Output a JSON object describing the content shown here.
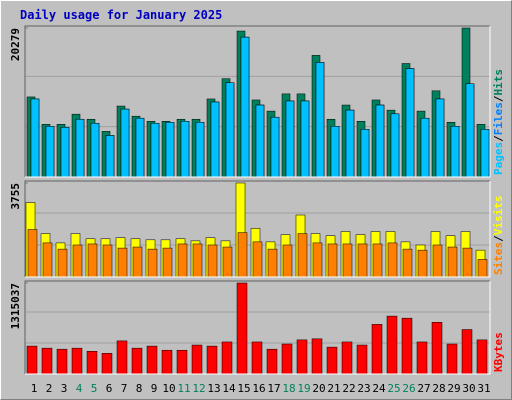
{
  "chart_data": [
    {
      "type": "bar",
      "title": "Daily usage for January 2025",
      "ylim": [
        0,
        20279
      ],
      "yticks": [
        20279
      ],
      "legend_separator": "/",
      "series": [
        {
          "name": "Hits",
          "color": "#00805c",
          "values": [
            10898,
            7173,
            7173,
            8553,
            7863,
            6208,
            9657,
            8277,
            7587,
            7587,
            7863,
            7863,
            10622,
            13381,
            19865,
            10484,
            8967,
            11312,
            11312,
            16554,
            7863,
            9794,
            7587,
            10484,
            9100,
            15450,
            8967,
            11726,
            7449,
            20279,
            7173
          ]
        },
        {
          "name": "Files",
          "color": "#0080ff",
          "values": [
            10622,
            6898,
            6760,
            7863,
            7311,
            5656,
            9243,
            8001,
            7311,
            7449,
            7587,
            7449,
            10208,
            12829,
            19037,
            9794,
            8139,
            10346,
            10346,
            15588,
            6898,
            9105,
            6484,
            9794,
            8600,
            14761,
            8001,
            10622,
            6898,
            12691,
            6484
          ]
        },
        {
          "name": "Pages",
          "color": "#00c0ff",
          "values": [
            10622,
            6898,
            6760,
            7863,
            7311,
            5656,
            9243,
            8001,
            7311,
            7449,
            7587,
            7449,
            10208,
            12829,
            19037,
            9794,
            8139,
            10346,
            10346,
            15588,
            6898,
            9105,
            6484,
            9794,
            8600,
            14761,
            8001,
            10622,
            6898,
            12691,
            6484
          ]
        }
      ]
    },
    {
      "type": "bar",
      "ylim": [
        0,
        3755
      ],
      "yticks": [
        3755
      ],
      "legend_separator": "/",
      "series": [
        {
          "name": "Visits",
          "color": "#ffff00",
          "values": [
            2971,
            1733,
            1362,
            1733,
            1527,
            1527,
            1568,
            1527,
            1485,
            1485,
            1527,
            1444,
            1568,
            1444,
            3755,
            1939,
            1403,
            1692,
            2476,
            1733,
            1650,
            1815,
            1692,
            1815,
            1815,
            1403,
            1279,
            1815,
            1650,
            1815,
            1073
          ]
        },
        {
          "name": "Sites",
          "color": "#ff8000",
          "values": [
            1898,
            1362,
            1114,
            1279,
            1320,
            1279,
            1155,
            1197,
            1114,
            1155,
            1320,
            1320,
            1279,
            1197,
            1774,
            1403,
            1114,
            1279,
            1733,
            1362,
            1320,
            1320,
            1320,
            1320,
            1362,
            1114,
            1073,
            1279,
            1197,
            1155,
            701
          ]
        }
      ]
    },
    {
      "type": "bar",
      "ylim": [
        0,
        1315037
      ],
      "yticks": [
        1315037
      ],
      "categories": [
        "1",
        "2",
        "3",
        "4",
        "5",
        "6",
        "7",
        "8",
        "9",
        "10",
        "11",
        "12",
        "13",
        "14",
        "15",
        "16",
        "17",
        "18",
        "19",
        "20",
        "21",
        "22",
        "23",
        "24",
        "25",
        "26",
        "27",
        "28",
        "29",
        "30",
        "31"
      ],
      "category_colors": [
        "#000000",
        "#000000",
        "#000000",
        "#00805c",
        "#00805c",
        "#000000",
        "#000000",
        "#000000",
        "#000000",
        "#000000",
        "#00805c",
        "#00805c",
        "#000000",
        "#000000",
        "#000000",
        "#000000",
        "#000000",
        "#00805c",
        "#00805c",
        "#000000",
        "#000000",
        "#000000",
        "#000000",
        "#000000",
        "#00805c",
        "#00805c",
        "#000000",
        "#000000",
        "#000000",
        "#000000",
        "#000000"
      ],
      "series": [
        {
          "name": "KBytes",
          "color": "#ff0000",
          "values": [
            403488,
            373600,
            358656,
            373600,
            328768,
            298880,
            478208,
            373600,
            403488,
            343712,
            343712,
            418432,
            403488,
            463264,
            1315037,
            463264,
            358656,
            433376,
            493152,
            508096,
            388544,
            463264,
            418432,
            717312,
            836864,
            806976,
            463264,
            747200,
            433376,
            642592,
            493152
          ]
        }
      ]
    }
  ]
}
